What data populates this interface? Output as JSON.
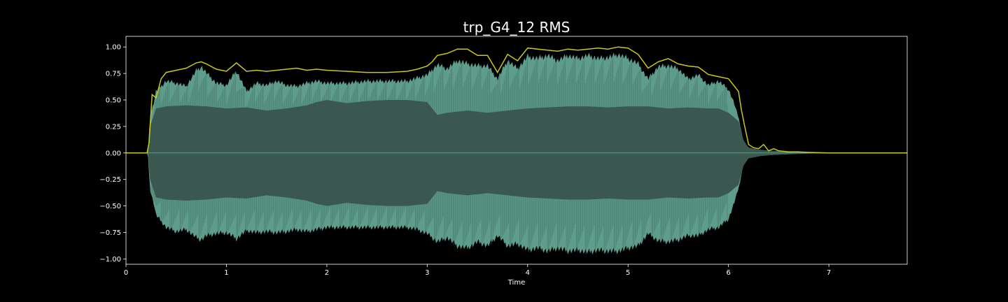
{
  "chart_data": {
    "type": "area",
    "title": "trp_G4_12 RMS",
    "xlabel": "Time",
    "ylabel": "",
    "xlim": [
      0,
      7.78
    ],
    "ylim": [
      -1.05,
      1.1
    ],
    "x_ticks": [
      0,
      1,
      2,
      3,
      4,
      5,
      6,
      7
    ],
    "x_tick_labels": [
      "0",
      "1",
      "2",
      "3",
      "4",
      "5",
      "6",
      "7"
    ],
    "y_ticks": [
      1.0,
      0.75,
      0.5,
      0.25,
      0.0,
      -0.25,
      -0.5,
      -0.75,
      -1.0
    ],
    "y_tick_labels": [
      "1.00",
      "0.75",
      "0.50",
      "0.25",
      "0.00",
      "−0.25",
      "−0.50",
      "−0.75",
      "−1.00"
    ],
    "grid": false,
    "colors": {
      "background": "#000000",
      "waveform_outer": "#5e9c8c",
      "waveform_inner": "#3a5850",
      "rms_line": "#c8c81e",
      "axes": "#ffffff"
    },
    "series": [
      {
        "kind": "rms_envelope",
        "x": [
          0,
          0.21,
          0.23,
          0.26,
          0.3,
          0.35,
          0.4,
          0.5,
          0.6,
          0.7,
          0.75,
          0.8,
          0.9,
          1.0,
          1.1,
          1.2,
          1.3,
          1.4,
          1.5,
          1.6,
          1.7,
          1.8,
          1.9,
          2.0,
          2.2,
          2.4,
          2.6,
          2.8,
          2.9,
          3.0,
          3.05,
          3.1,
          3.2,
          3.3,
          3.4,
          3.5,
          3.6,
          3.7,
          3.8,
          3.9,
          4.0,
          4.1,
          4.2,
          4.3,
          4.4,
          4.5,
          4.6,
          4.7,
          4.8,
          4.9,
          5.0,
          5.1,
          5.2,
          5.3,
          5.4,
          5.5,
          5.6,
          5.7,
          5.8,
          5.9,
          6.0,
          6.1,
          6.13,
          6.16,
          6.2,
          6.25,
          6.3,
          6.35,
          6.4,
          6.45,
          6.5,
          6.6,
          6.7,
          6.8,
          7.0,
          7.78
        ],
        "values": [
          0.0,
          0.0,
          0.1,
          0.55,
          0.52,
          0.7,
          0.76,
          0.78,
          0.8,
          0.85,
          0.86,
          0.84,
          0.79,
          0.77,
          0.85,
          0.77,
          0.78,
          0.77,
          0.78,
          0.79,
          0.8,
          0.78,
          0.79,
          0.78,
          0.77,
          0.76,
          0.76,
          0.77,
          0.79,
          0.82,
          0.86,
          0.92,
          0.94,
          0.98,
          0.98,
          0.92,
          0.92,
          0.76,
          0.93,
          0.87,
          0.99,
          0.98,
          0.97,
          0.96,
          0.98,
          0.97,
          0.98,
          0.99,
          0.98,
          1.0,
          0.99,
          0.93,
          0.8,
          0.86,
          0.89,
          0.84,
          0.82,
          0.81,
          0.74,
          0.72,
          0.7,
          0.58,
          0.4,
          0.26,
          0.08,
          0.05,
          0.04,
          0.08,
          0.02,
          0.04,
          0.02,
          0.01,
          0.01,
          0.005,
          0.0,
          0.0
        ]
      },
      {
        "kind": "waveform_upper",
        "x": [
          0,
          0.22,
          0.24,
          0.28,
          0.3,
          0.4,
          0.5,
          0.6,
          0.7,
          0.75,
          0.8,
          0.9,
          1.0,
          1.1,
          1.2,
          1.3,
          1.4,
          1.5,
          1.6,
          1.7,
          1.8,
          1.9,
          2.0,
          2.2,
          2.4,
          2.6,
          2.8,
          2.9,
          3.0,
          3.1,
          3.2,
          3.3,
          3.4,
          3.5,
          3.6,
          3.7,
          3.8,
          3.9,
          4.0,
          4.1,
          4.2,
          4.3,
          4.4,
          4.5,
          4.6,
          4.7,
          4.8,
          4.9,
          5.0,
          5.1,
          5.2,
          5.3,
          5.4,
          5.5,
          5.6,
          5.7,
          5.8,
          5.9,
          6.0,
          6.05,
          6.1,
          6.15,
          6.2,
          6.3,
          6.4,
          6.5,
          6.7,
          7.0,
          7.78
        ],
        "values": [
          0.0,
          0.0,
          0.35,
          0.5,
          0.6,
          0.7,
          0.68,
          0.65,
          0.8,
          0.84,
          0.78,
          0.68,
          0.66,
          0.8,
          0.6,
          0.68,
          0.66,
          0.7,
          0.66,
          0.65,
          0.68,
          0.7,
          0.68,
          0.68,
          0.7,
          0.7,
          0.7,
          0.73,
          0.76,
          0.86,
          0.82,
          0.9,
          0.87,
          0.85,
          0.85,
          0.72,
          0.9,
          0.82,
          0.94,
          0.92,
          0.95,
          0.9,
          0.95,
          0.92,
          0.95,
          0.92,
          0.93,
          0.96,
          0.92,
          0.87,
          0.72,
          0.84,
          0.85,
          0.82,
          0.72,
          0.76,
          0.66,
          0.7,
          0.62,
          0.5,
          0.34,
          0.1,
          0.05,
          0.03,
          0.02,
          0.015,
          0.005,
          0.0,
          0.0
        ]
      },
      {
        "kind": "waveform_lower",
        "x": [
          0,
          0.22,
          0.24,
          0.28,
          0.3,
          0.4,
          0.5,
          0.6,
          0.7,
          0.75,
          0.8,
          0.9,
          1.0,
          1.1,
          1.2,
          1.3,
          1.4,
          1.5,
          1.6,
          1.7,
          1.8,
          1.9,
          2.0,
          2.2,
          2.4,
          2.6,
          2.8,
          2.9,
          3.0,
          3.1,
          3.2,
          3.3,
          3.4,
          3.5,
          3.6,
          3.7,
          3.8,
          3.9,
          4.0,
          4.1,
          4.2,
          4.3,
          4.4,
          4.5,
          4.6,
          4.7,
          4.8,
          4.9,
          5.0,
          5.1,
          5.2,
          5.3,
          5.4,
          5.5,
          5.6,
          5.7,
          5.8,
          5.9,
          6.0,
          6.05,
          6.1,
          6.15,
          6.2,
          6.3,
          6.4,
          6.5,
          6.7,
          7.0,
          7.78
        ],
        "values": [
          0.0,
          0.0,
          -0.35,
          -0.5,
          -0.6,
          -0.72,
          -0.76,
          -0.74,
          -0.82,
          -0.84,
          -0.8,
          -0.78,
          -0.77,
          -0.83,
          -0.75,
          -0.77,
          -0.76,
          -0.77,
          -0.76,
          -0.74,
          -0.76,
          -0.74,
          -0.72,
          -0.72,
          -0.72,
          -0.72,
          -0.72,
          -0.74,
          -0.78,
          -0.86,
          -0.82,
          -0.9,
          -0.92,
          -0.86,
          -0.9,
          -0.8,
          -0.9,
          -0.88,
          -0.94,
          -0.92,
          -0.95,
          -0.92,
          -0.95,
          -0.94,
          -0.96,
          -0.94,
          -0.95,
          -0.95,
          -0.92,
          -0.9,
          -0.78,
          -0.85,
          -0.86,
          -0.84,
          -0.8,
          -0.8,
          -0.74,
          -0.72,
          -0.64,
          -0.5,
          -0.34,
          -0.1,
          -0.05,
          -0.03,
          -0.02,
          -0.015,
          -0.005,
          0.0,
          0.0
        ]
      },
      {
        "kind": "waveform_core",
        "x": [
          0,
          0.22,
          0.24,
          0.3,
          0.4,
          0.6,
          0.8,
          1.0,
          1.2,
          1.4,
          1.6,
          1.8,
          1.9,
          2.0,
          2.2,
          2.4,
          2.6,
          2.8,
          3.0,
          3.1,
          3.2,
          3.4,
          3.6,
          3.8,
          4.0,
          4.2,
          4.4,
          4.6,
          4.8,
          5.0,
          5.2,
          5.4,
          5.6,
          5.8,
          5.9,
          6.0,
          6.1,
          6.15,
          6.2,
          6.3,
          6.5,
          7.0,
          7.78
        ],
        "values": [
          0.0,
          0.0,
          0.25,
          0.42,
          0.44,
          0.45,
          0.44,
          0.42,
          0.43,
          0.4,
          0.42,
          0.45,
          0.48,
          0.5,
          0.47,
          0.49,
          0.5,
          0.5,
          0.48,
          0.36,
          0.38,
          0.4,
          0.38,
          0.4,
          0.42,
          0.43,
          0.44,
          0.44,
          0.43,
          0.44,
          0.44,
          0.42,
          0.43,
          0.42,
          0.42,
          0.38,
          0.3,
          0.12,
          0.05,
          0.03,
          0.015,
          0.0,
          0.0
        ]
      }
    ]
  }
}
